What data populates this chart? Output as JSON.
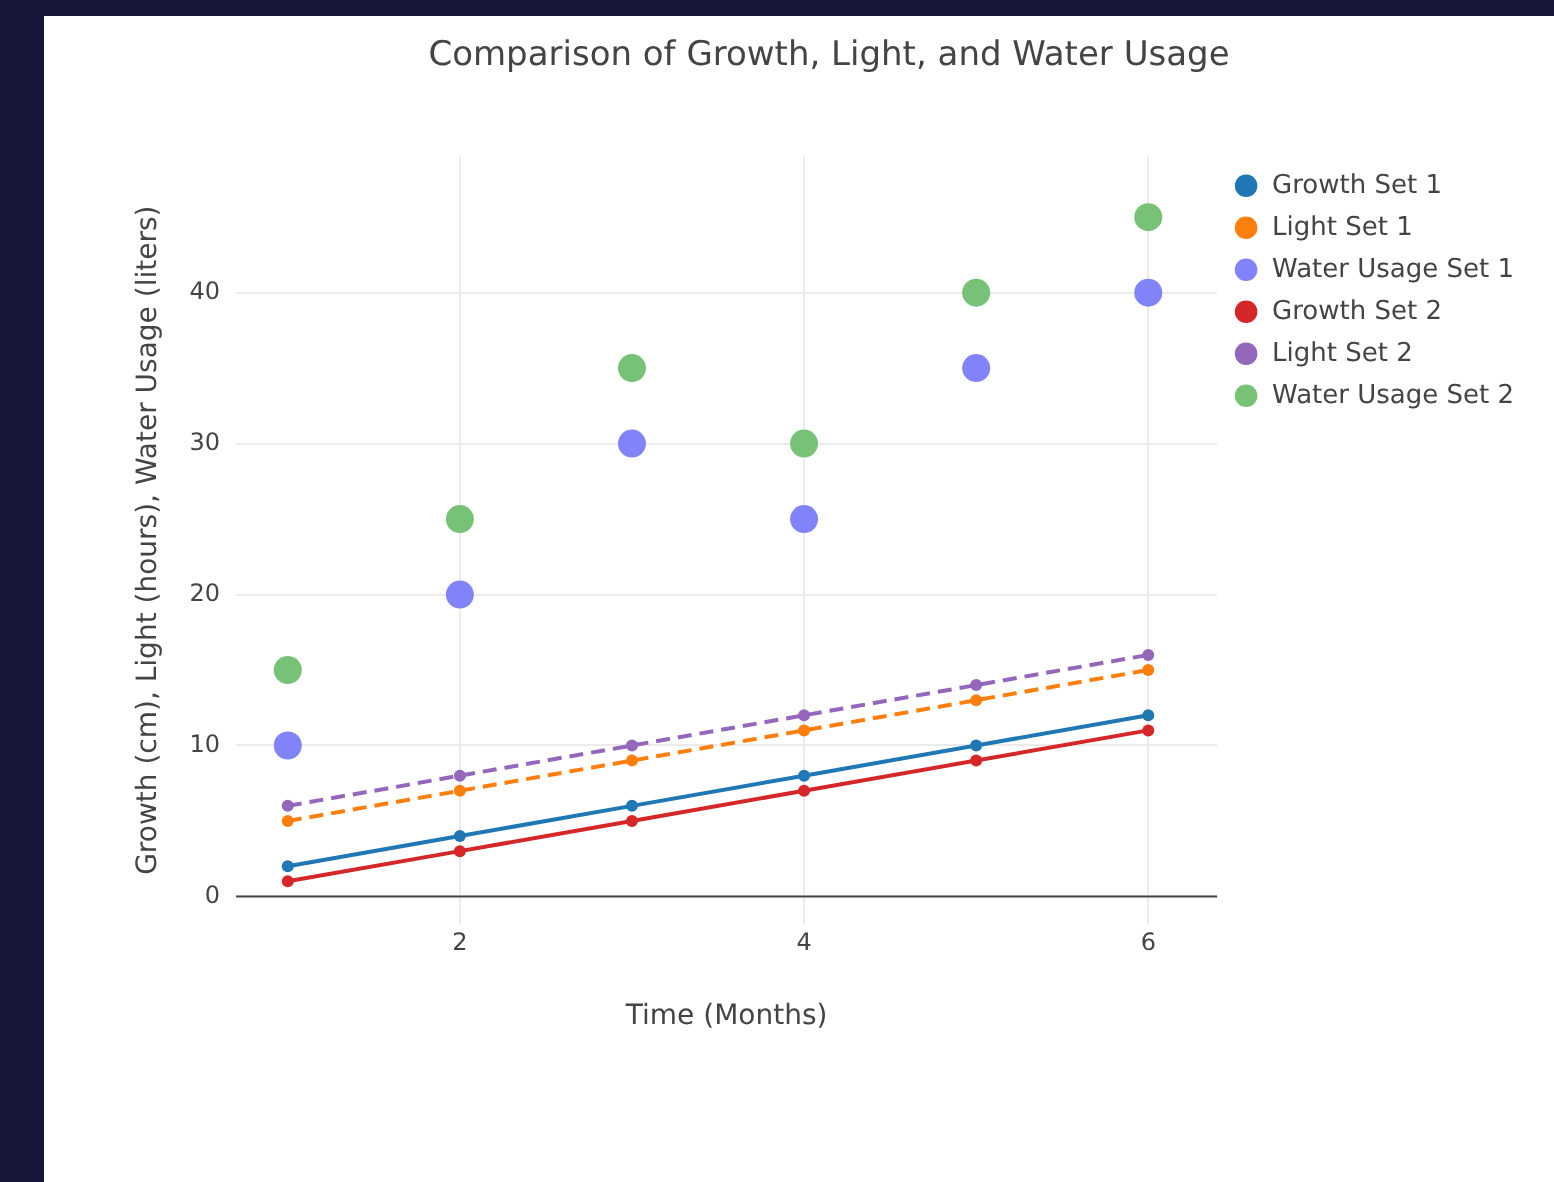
{
  "chart_data": {
    "type": "line",
    "title": "Comparison of Growth, Light, and Water Usage",
    "xlabel": "Time (Months)",
    "ylabel": "Growth (cm), Light (hours), Water Usage (liters)",
    "x": [
      1,
      2,
      3,
      4,
      5,
      6
    ],
    "series": [
      {
        "name": "Growth Set 1",
        "type": "line",
        "color": "#1f77b4",
        "line_style": "solid",
        "marker": "circle",
        "values": [
          2,
          4,
          6,
          8,
          10,
          12
        ]
      },
      {
        "name": "Light Set 1",
        "type": "line",
        "color": "#ff7f0e",
        "line_style": "dashed",
        "marker": "circle",
        "values": [
          5,
          7,
          9,
          11,
          13,
          15
        ]
      },
      {
        "name": "Water Usage Set 1",
        "type": "scatter",
        "color": "#8084f8",
        "marker": "circle",
        "values": [
          10,
          20,
          30,
          25,
          35,
          40
        ]
      },
      {
        "name": "Growth Set 2",
        "type": "line",
        "color": "#d62728",
        "line_style": "solid",
        "marker": "circle",
        "values": [
          1,
          3,
          5,
          7,
          9,
          11
        ]
      },
      {
        "name": "Light Set 2",
        "type": "line",
        "color": "#9467bd",
        "line_style": "dashed",
        "marker": "circle",
        "values": [
          6,
          8,
          10,
          12,
          14,
          16
        ]
      },
      {
        "name": "Water Usage Set 2",
        "type": "scatter",
        "color": "#78c278",
        "marker": "circle",
        "values": [
          15,
          25,
          35,
          30,
          40,
          45
        ]
      }
    ],
    "xlim": [
      0.7,
      6.4
    ],
    "xticks": [
      2,
      4,
      6
    ],
    "ylim": [
      -1.8,
      49
    ],
    "yticks": [
      0,
      10,
      20,
      30,
      40
    ],
    "grid": true,
    "legend": "top right"
  }
}
